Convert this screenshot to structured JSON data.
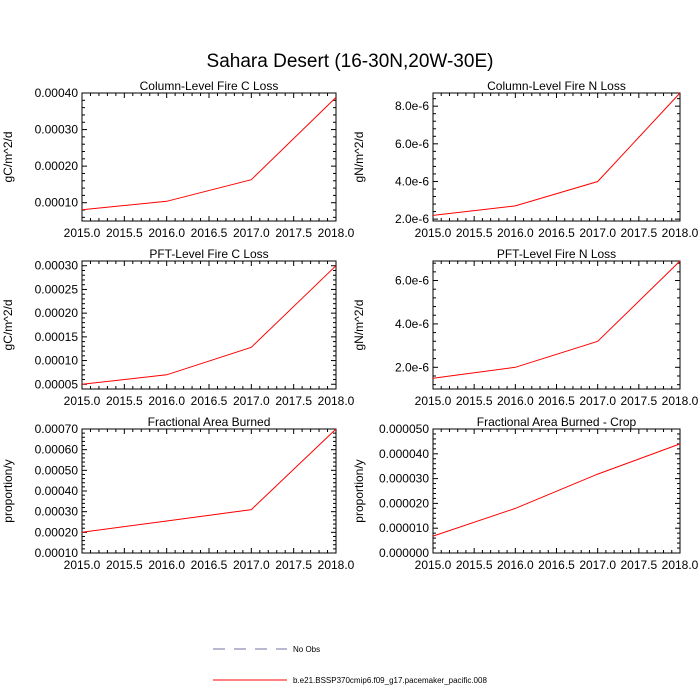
{
  "title": "Sahara Desert (16-30N,20W-30E)",
  "legend": {
    "entries": [
      {
        "label": "No Obs",
        "color": "#7070a0",
        "style": "dashed"
      },
      {
        "label": "b.e21.BSSP370cmip6.f09_g17.pacemaker_pacific.008",
        "color": "#ff0000",
        "style": "solid"
      }
    ]
  },
  "chart_data": [
    {
      "type": "line",
      "title": "Column-Level Fire C Loss",
      "ylabel": "gC/m^2/d",
      "x": [
        2015.0,
        2016.0,
        2017.0,
        2018.0
      ],
      "xlim": [
        2015.0,
        2018.0
      ],
      "xticks": [
        "2015.0",
        "2015.5",
        "2016.0",
        "2016.5",
        "2017.0",
        "2017.5",
        "2018.0"
      ],
      "ylim": [
        5e-05,
        0.0004
      ],
      "ytick_values": [
        0.0001,
        0.0002,
        0.0003,
        0.0004
      ],
      "yticks": [
        "0.00010",
        "0.00020",
        "0.00030",
        "0.00040"
      ],
      "series": [
        {
          "color": "#ff0000",
          "values": [
            8.1e-05,
            0.000104,
            0.000163,
            0.000388
          ]
        }
      ]
    },
    {
      "type": "line",
      "title": "Column-Level Fire N Loss",
      "ylabel": "gN/m^2/d",
      "x": [
        2015.0,
        2016.0,
        2017.0,
        2018.0
      ],
      "xlim": [
        2015.0,
        2018.0
      ],
      "xticks": [
        "2015.0",
        "2015.5",
        "2016.0",
        "2016.5",
        "2017.0",
        "2017.5",
        "2018.0"
      ],
      "ylim": [
        1.9e-06,
        8.7e-06
      ],
      "ytick_values": [
        2e-06,
        4e-06,
        6e-06,
        8e-06
      ],
      "yticks": [
        "2.0e-6",
        "4.0e-6",
        "6.0e-6",
        "8.0e-6"
      ],
      "series": [
        {
          "color": "#ff0000",
          "values": [
            2.2e-06,
            2.7e-06,
            4e-06,
            8.7e-06
          ]
        }
      ]
    },
    {
      "type": "line",
      "title": "PFT-Level Fire C Loss",
      "ylabel": "gC/m^2/d",
      "x": [
        2015.0,
        2016.0,
        2017.0,
        2018.0
      ],
      "xlim": [
        2015.0,
        2018.0
      ],
      "xticks": [
        "2015.0",
        "2015.5",
        "2016.0",
        "2016.5",
        "2017.0",
        "2017.5",
        "2018.0"
      ],
      "ylim": [
        4e-05,
        0.00031
      ],
      "ytick_values": [
        5e-05,
        0.0001,
        0.00015,
        0.0002,
        0.00025,
        0.0003
      ],
      "yticks": [
        "0.00005",
        "0.00010",
        "0.00015",
        "0.00020",
        "0.00025",
        "0.00030"
      ],
      "series": [
        {
          "color": "#ff0000",
          "values": [
            5e-05,
            7e-05,
            0.000128,
            0.0003
          ]
        }
      ]
    },
    {
      "type": "line",
      "title": "PFT-Level Fire N Loss",
      "ylabel": "gN/m^2/d",
      "x": [
        2015.0,
        2016.0,
        2017.0,
        2018.0
      ],
      "xlim": [
        2015.0,
        2018.0
      ],
      "xticks": [
        "2015.0",
        "2015.5",
        "2016.0",
        "2016.5",
        "2017.0",
        "2017.5",
        "2018.0"
      ],
      "ylim": [
        1e-06,
        6.9e-06
      ],
      "ytick_values": [
        2e-06,
        4e-06,
        6e-06
      ],
      "yticks": [
        "2.0e-6",
        "4.0e-6",
        "6.0e-6"
      ],
      "series": [
        {
          "color": "#ff0000",
          "values": [
            1.5e-06,
            2e-06,
            3.2e-06,
            6.9e-06
          ]
        }
      ]
    },
    {
      "type": "line",
      "title": "Fractional Area Burned",
      "ylabel": "proportion/y",
      "x": [
        2015.0,
        2016.0,
        2017.0,
        2018.0
      ],
      "xlim": [
        2015.0,
        2018.0
      ],
      "xticks": [
        "2015.0",
        "2015.5",
        "2016.0",
        "2016.5",
        "2017.0",
        "2017.5",
        "2018.0"
      ],
      "ylim": [
        0.0001,
        0.0007
      ],
      "ytick_values": [
        0.0001,
        0.0002,
        0.0003,
        0.0004,
        0.0005,
        0.0006,
        0.0007
      ],
      "yticks": [
        "0.00010",
        "0.00020",
        "0.00030",
        "0.00040",
        "0.00050",
        "0.00060",
        "0.00070"
      ],
      "series": [
        {
          "color": "#ff0000",
          "values": [
            0.0002,
            0.000255,
            0.00031,
            0.0007
          ]
        }
      ]
    },
    {
      "type": "line",
      "title": "Fractional Area Burned - Crop",
      "ylabel": "proportion/y",
      "x": [
        2015.0,
        2016.0,
        2017.0,
        2018.0
      ],
      "xlim": [
        2015.0,
        2018.0
      ],
      "xticks": [
        "2015.0",
        "2015.5",
        "2016.0",
        "2016.5",
        "2017.0",
        "2017.5",
        "2018.0"
      ],
      "ylim": [
        0.0,
        5e-05
      ],
      "ytick_values": [
        0.0,
        1e-05,
        2e-05,
        3e-05,
        4e-05,
        5e-05
      ],
      "yticks": [
        "0.000000",
        "0.000010",
        "0.000020",
        "0.000030",
        "0.000040",
        "0.000050"
      ],
      "series": [
        {
          "color": "#ff0000",
          "values": [
            6.8e-06,
            1.8e-05,
            3.18e-05,
            4.4e-05
          ]
        }
      ]
    }
  ]
}
